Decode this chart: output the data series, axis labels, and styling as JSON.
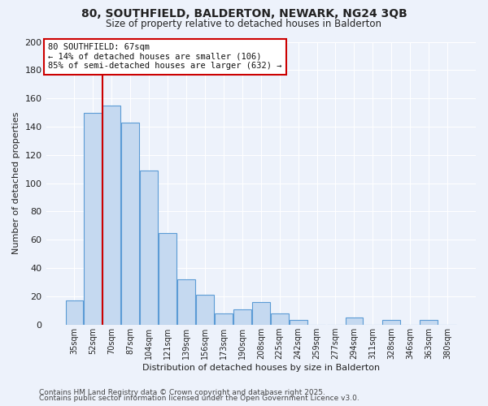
{
  "title": "80, SOUTHFIELD, BALDERTON, NEWARK, NG24 3QB",
  "subtitle": "Size of property relative to detached houses in Balderton",
  "xlabel": "Distribution of detached houses by size in Balderton",
  "ylabel": "Number of detached properties",
  "bar_color": "#c5d9f0",
  "bar_edge_color": "#5b9bd5",
  "background_color": "#edf2fb",
  "grid_color": "#ffffff",
  "categories": [
    "35sqm",
    "52sqm",
    "70sqm",
    "87sqm",
    "104sqm",
    "121sqm",
    "139sqm",
    "156sqm",
    "173sqm",
    "190sqm",
    "208sqm",
    "225sqm",
    "242sqm",
    "259sqm",
    "277sqm",
    "294sqm",
    "311sqm",
    "328sqm",
    "346sqm",
    "363sqm",
    "380sqm"
  ],
  "values": [
    17,
    150,
    155,
    143,
    109,
    65,
    32,
    21,
    8,
    11,
    16,
    8,
    3,
    0,
    0,
    5,
    0,
    3,
    0,
    3,
    0
  ],
  "ylim": [
    0,
    200
  ],
  "yticks": [
    0,
    20,
    40,
    60,
    80,
    100,
    120,
    140,
    160,
    180,
    200
  ],
  "vline_x_index": 2,
  "vline_color": "#cc0000",
  "annotation_title": "80 SOUTHFIELD: 67sqm",
  "annotation_line1": "← 14% of detached houses are smaller (106)",
  "annotation_line2": "85% of semi-detached houses are larger (632) →",
  "annotation_box_color": "#ffffff",
  "annotation_box_edge": "#cc0000",
  "footer_line1": "Contains HM Land Registry data © Crown copyright and database right 2025.",
  "footer_line2": "Contains public sector information licensed under the Open Government Licence v3.0."
}
